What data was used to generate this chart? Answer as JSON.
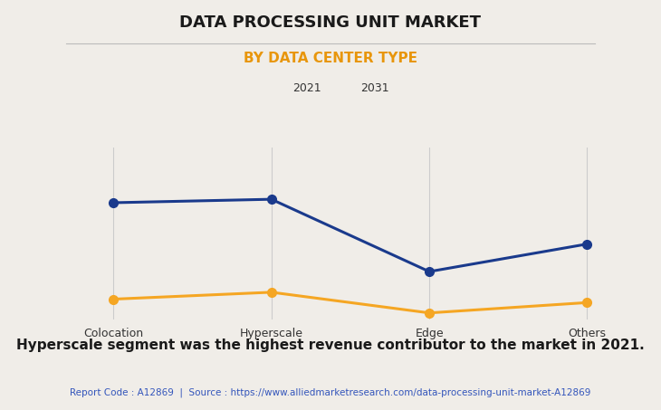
{
  "title": "DATA PROCESSING UNIT MARKET",
  "subtitle": "BY DATA CENTER TYPE",
  "categories": [
    "Colocation",
    "Hyperscale",
    "Edge",
    "Others"
  ],
  "series_2021": {
    "label": "2021",
    "color": "#F5A623",
    "values": [
      0.12,
      0.16,
      0.04,
      0.1
    ]
  },
  "series_2031": {
    "label": "2031",
    "color": "#1A3A8C",
    "values": [
      0.68,
      0.7,
      0.28,
      0.44
    ]
  },
  "ylim": [
    0,
    1.0
  ],
  "background_color": "#F0EDE8",
  "grid_color": "#CCCCCC",
  "annotation_text": "Hyperscale segment was the highest revenue contributor to the market in 2021.",
  "footer_text": "Report Code : A12869  |  Source : https://www.alliedmarketresearch.com/data-processing-unit-market-A12869",
  "title_fontsize": 13,
  "subtitle_fontsize": 11,
  "annotation_fontsize": 11,
  "footer_fontsize": 7.5,
  "legend_fontsize": 9,
  "tick_fontsize": 9
}
